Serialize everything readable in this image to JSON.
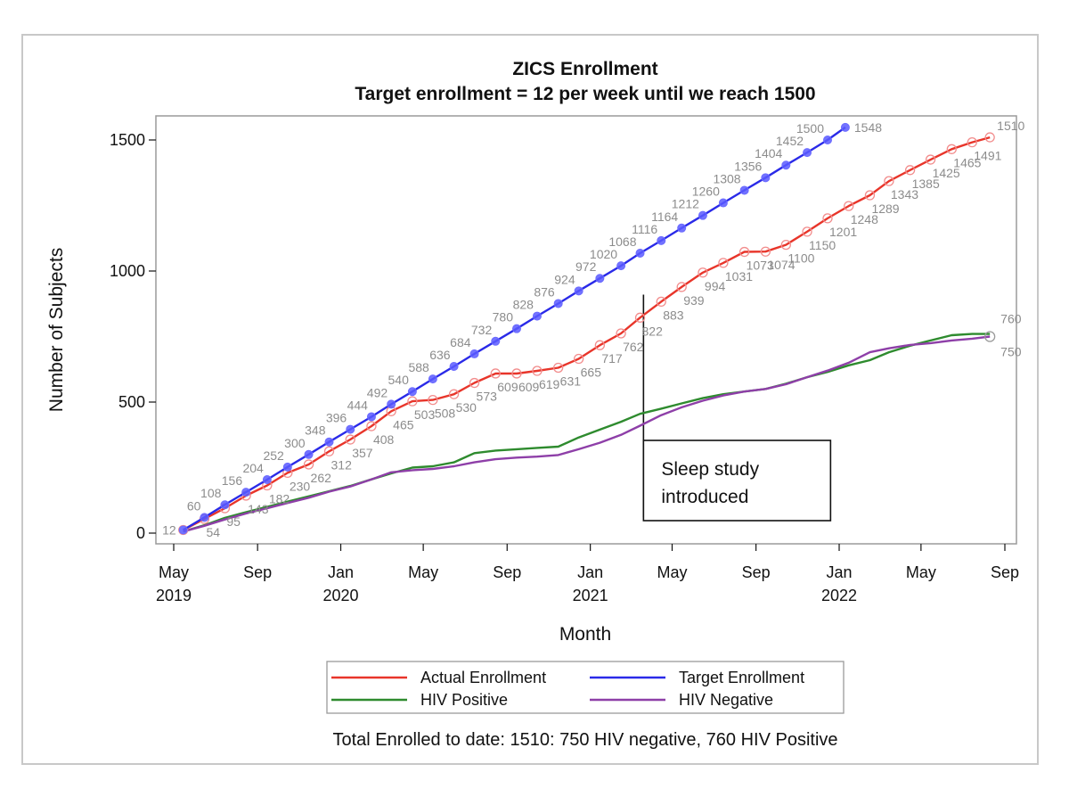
{
  "chart_data": {
    "type": "line",
    "title": "ZICS Enrollment",
    "subtitle": "Target enrollment = 12 per week until we reach 1500",
    "xlabel": "Month",
    "ylabel": "Number of Subjects",
    "xlim": [
      "2019-05-01",
      "2022-09-01"
    ],
    "ylim": [
      0,
      1500
    ],
    "yticks": [
      0,
      500,
      1000,
      1500
    ],
    "xticks": [
      {
        "date": "2019-05-01",
        "month": "May",
        "year": "2019"
      },
      {
        "date": "2019-09-01",
        "month": "Sep",
        "year": ""
      },
      {
        "date": "2020-01-01",
        "month": "Jan",
        "year": "2020"
      },
      {
        "date": "2020-05-01",
        "month": "May",
        "year": ""
      },
      {
        "date": "2020-09-01",
        "month": "Sep",
        "year": ""
      },
      {
        "date": "2021-01-01",
        "month": "Jan",
        "year": "2021"
      },
      {
        "date": "2021-05-01",
        "month": "May",
        "year": ""
      },
      {
        "date": "2021-09-01",
        "month": "Sep",
        "year": ""
      },
      {
        "date": "2022-01-01",
        "month": "Jan",
        "year": "2022"
      },
      {
        "date": "2022-05-01",
        "month": "May",
        "year": ""
      },
      {
        "date": "2022-09-01",
        "month": "Sep",
        "year": ""
      }
    ],
    "grid": false,
    "legend_position": "bottom",
    "series": [
      {
        "name": "Actual Enrollment",
        "color": "#e8352a",
        "marker": "open-circle",
        "points": [
          [
            "2019-05-15",
            12
          ],
          [
            "2019-06-15",
            54
          ],
          [
            "2019-07-15",
            95
          ],
          [
            "2019-08-15",
            143
          ],
          [
            "2019-09-15",
            182
          ],
          [
            "2019-10-15",
            230
          ],
          [
            "2019-11-15",
            262
          ],
          [
            "2019-12-15",
            312
          ],
          [
            "2020-01-15",
            357
          ],
          [
            "2020-02-15",
            408
          ],
          [
            "2020-03-15",
            465
          ],
          [
            "2020-04-15",
            503
          ],
          [
            "2020-05-15",
            508
          ],
          [
            "2020-06-15",
            530
          ],
          [
            "2020-07-15",
            573
          ],
          [
            "2020-08-15",
            609
          ],
          [
            "2020-09-15",
            609
          ],
          [
            "2020-10-15",
            619
          ],
          [
            "2020-11-15",
            631
          ],
          [
            "2020-12-15",
            665
          ],
          [
            "2021-01-15",
            717
          ],
          [
            "2021-02-15",
            762
          ],
          [
            "2021-03-15",
            822
          ],
          [
            "2021-04-15",
            883
          ],
          [
            "2021-05-15",
            939
          ],
          [
            "2021-06-15",
            994
          ],
          [
            "2021-07-15",
            1031
          ],
          [
            "2021-08-15",
            1073
          ],
          [
            "2021-09-15",
            1074
          ],
          [
            "2021-10-15",
            1100
          ],
          [
            "2021-11-15",
            1150
          ],
          [
            "2021-12-15",
            1201
          ],
          [
            "2022-01-15",
            1248
          ],
          [
            "2022-02-15",
            1289
          ],
          [
            "2022-03-15",
            1343
          ],
          [
            "2022-04-15",
            1385
          ],
          [
            "2022-05-15",
            1425
          ],
          [
            "2022-06-15",
            1465
          ],
          [
            "2022-07-15",
            1491
          ],
          [
            "2022-08-10",
            1510
          ]
        ]
      },
      {
        "name": "Target Enrollment",
        "color": "#2a2ae8",
        "marker": "filled-circle",
        "points": [
          [
            "2019-05-15",
            12
          ],
          [
            "2019-06-15",
            60
          ],
          [
            "2019-07-15",
            108
          ],
          [
            "2019-08-15",
            156
          ],
          [
            "2019-09-15",
            204
          ],
          [
            "2019-10-15",
            252
          ],
          [
            "2019-11-15",
            300
          ],
          [
            "2019-12-15",
            348
          ],
          [
            "2020-01-15",
            396
          ],
          [
            "2020-02-15",
            444
          ],
          [
            "2020-03-15",
            492
          ],
          [
            "2020-04-15",
            540
          ],
          [
            "2020-05-15",
            588
          ],
          [
            "2020-06-15",
            636
          ],
          [
            "2020-07-15",
            684
          ],
          [
            "2020-08-15",
            732
          ],
          [
            "2020-09-15",
            780
          ],
          [
            "2020-10-15",
            828
          ],
          [
            "2020-11-15",
            876
          ],
          [
            "2020-12-15",
            924
          ],
          [
            "2021-01-15",
            972
          ],
          [
            "2021-02-15",
            1020
          ],
          [
            "2021-03-15",
            1068
          ],
          [
            "2021-04-15",
            1116
          ],
          [
            "2021-05-15",
            1164
          ],
          [
            "2021-06-15",
            1212
          ],
          [
            "2021-07-15",
            1260
          ],
          [
            "2021-08-15",
            1308
          ],
          [
            "2021-09-15",
            1356
          ],
          [
            "2021-10-15",
            1404
          ],
          [
            "2021-11-15",
            1452
          ],
          [
            "2021-12-15",
            1500
          ],
          [
            "2022-01-10",
            1548
          ]
        ]
      },
      {
        "name": "HIV Positive",
        "color": "#2e8b2e",
        "marker": "none",
        "points": [
          [
            "2019-05-15",
            6
          ],
          [
            "2019-06-15",
            30
          ],
          [
            "2019-07-15",
            58
          ],
          [
            "2019-08-15",
            80
          ],
          [
            "2019-09-15",
            100
          ],
          [
            "2019-10-15",
            120
          ],
          [
            "2019-11-15",
            140
          ],
          [
            "2019-12-15",
            160
          ],
          [
            "2020-01-15",
            180
          ],
          [
            "2020-02-15",
            205
          ],
          [
            "2020-03-15",
            228
          ],
          [
            "2020-04-15",
            250
          ],
          [
            "2020-05-15",
            255
          ],
          [
            "2020-06-15",
            270
          ],
          [
            "2020-07-15",
            305
          ],
          [
            "2020-08-15",
            315
          ],
          [
            "2020-09-15",
            320
          ],
          [
            "2020-10-15",
            325
          ],
          [
            "2020-11-15",
            330
          ],
          [
            "2020-12-15",
            365
          ],
          [
            "2021-01-15",
            395
          ],
          [
            "2021-02-15",
            425
          ],
          [
            "2021-03-15",
            455
          ],
          [
            "2021-04-15",
            475
          ],
          [
            "2021-05-15",
            495
          ],
          [
            "2021-06-15",
            515
          ],
          [
            "2021-07-15",
            530
          ],
          [
            "2021-08-15",
            540
          ],
          [
            "2021-09-15",
            550
          ],
          [
            "2021-10-15",
            570
          ],
          [
            "2021-11-15",
            595
          ],
          [
            "2021-12-15",
            615
          ],
          [
            "2022-01-15",
            640
          ],
          [
            "2022-02-15",
            660
          ],
          [
            "2022-03-15",
            690
          ],
          [
            "2022-04-15",
            715
          ],
          [
            "2022-05-15",
            735
          ],
          [
            "2022-06-15",
            755
          ],
          [
            "2022-07-15",
            760
          ],
          [
            "2022-08-10",
            760
          ]
        ]
      },
      {
        "name": "HIV Negative",
        "color": "#8e3fa8",
        "marker": "none",
        "points": [
          [
            "2019-05-15",
            6
          ],
          [
            "2019-06-15",
            28
          ],
          [
            "2019-07-15",
            52
          ],
          [
            "2019-08-15",
            75
          ],
          [
            "2019-09-15",
            95
          ],
          [
            "2019-10-15",
            115
          ],
          [
            "2019-11-15",
            135
          ],
          [
            "2019-12-15",
            158
          ],
          [
            "2020-01-15",
            178
          ],
          [
            "2020-02-15",
            205
          ],
          [
            "2020-03-15",
            232
          ],
          [
            "2020-04-15",
            240
          ],
          [
            "2020-05-15",
            245
          ],
          [
            "2020-06-15",
            255
          ],
          [
            "2020-07-15",
            270
          ],
          [
            "2020-08-15",
            282
          ],
          [
            "2020-09-15",
            288
          ],
          [
            "2020-10-15",
            292
          ],
          [
            "2020-11-15",
            298
          ],
          [
            "2020-12-15",
            320
          ],
          [
            "2021-01-15",
            345
          ],
          [
            "2021-02-15",
            375
          ],
          [
            "2021-03-15",
            410
          ],
          [
            "2021-04-15",
            450
          ],
          [
            "2021-05-15",
            480
          ],
          [
            "2021-06-15",
            505
          ],
          [
            "2021-07-15",
            525
          ],
          [
            "2021-08-15",
            540
          ],
          [
            "2021-09-15",
            550
          ],
          [
            "2021-10-15",
            568
          ],
          [
            "2021-11-15",
            595
          ],
          [
            "2021-12-15",
            620
          ],
          [
            "2022-01-15",
            650
          ],
          [
            "2022-02-15",
            690
          ],
          [
            "2022-03-15",
            705
          ],
          [
            "2022-04-15",
            718
          ],
          [
            "2022-05-15",
            725
          ],
          [
            "2022-06-15",
            735
          ],
          [
            "2022-07-15",
            742
          ],
          [
            "2022-08-10",
            750
          ]
        ]
      }
    ],
    "end_labels": [
      {
        "text": "760",
        "series": "HIV Positive",
        "date": "2022-08-10",
        "value": 760,
        "pos": "above"
      },
      {
        "text": "750",
        "series": "HIV Negative",
        "date": "2022-08-10",
        "value": 750,
        "pos": "below"
      }
    ],
    "annotation": {
      "lines": [
        "Sleep study",
        "introduced"
      ],
      "date": "2021-03-20",
      "value_top": 910,
      "value_bottom": 60
    },
    "footnote": "Total Enrolled to date: 1510: 750 HIV negative, 760 HIV Positive"
  }
}
